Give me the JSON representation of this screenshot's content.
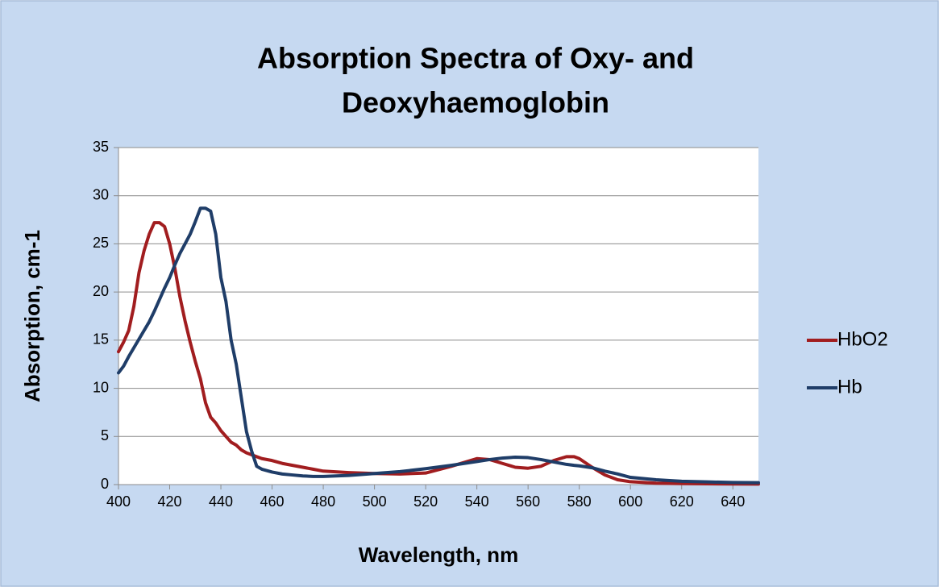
{
  "chart_data": {
    "type": "line",
    "title": [
      "Absorption Spectra of Oxy- and",
      "Deoxyhaemoglobin"
    ],
    "x_label": "Wavelength, nm",
    "y_label": "Absorption, cm-1",
    "x": [
      400,
      402,
      404,
      406,
      408,
      410,
      412,
      414,
      416,
      418,
      420,
      422,
      424,
      426,
      428,
      430,
      432,
      434,
      436,
      438,
      440,
      442,
      444,
      446,
      448,
      450,
      452,
      454,
      456,
      460,
      464,
      468,
      472,
      476,
      480,
      490,
      500,
      510,
      520,
      530,
      540,
      545,
      550,
      555,
      560,
      565,
      570,
      575,
      578,
      580,
      585,
      590,
      595,
      600,
      610,
      620,
      630,
      640,
      650
    ],
    "series": [
      {
        "name": "HbO2",
        "color": "#a11d1f",
        "values": [
          13.8,
          14.8,
          16,
          18.5,
          22,
          24.3,
          26,
          27.2,
          27.2,
          26.8,
          25,
          22.5,
          19.5,
          17,
          14.8,
          12.8,
          11,
          8.5,
          7,
          6.4,
          5.6,
          5,
          4.4,
          4.1,
          3.6,
          3.3,
          3.1,
          2.9,
          2.7,
          2.5,
          2.2,
          2,
          1.8,
          1.6,
          1.4,
          1.25,
          1.15,
          1.1,
          1.2,
          1.9,
          2.7,
          2.6,
          2.2,
          1.8,
          1.7,
          1.9,
          2.5,
          2.9,
          2.9,
          2.7,
          1.8,
          1,
          0.5,
          0.3,
          0.15,
          0.1,
          0.08,
          0.06,
          0.05
        ]
      },
      {
        "name": "Hb",
        "color": "#1f3d68",
        "values": [
          11.6,
          12.3,
          13.3,
          14.2,
          15.1,
          16,
          16.9,
          18,
          19.2,
          20.4,
          21.5,
          22.8,
          24,
          25,
          26,
          27.3,
          28.7,
          28.7,
          28.4,
          26,
          21.5,
          19,
          15,
          12.5,
          9,
          5.5,
          3.5,
          1.9,
          1.6,
          1.3,
          1.1,
          1,
          0.9,
          0.85,
          0.85,
          0.95,
          1.15,
          1.35,
          1.65,
          2,
          2.4,
          2.6,
          2.75,
          2.85,
          2.8,
          2.6,
          2.35,
          2.1,
          2,
          1.95,
          1.75,
          1.4,
          1.1,
          0.75,
          0.5,
          0.35,
          0.28,
          0.22,
          0.2
        ]
      }
    ],
    "xlim": [
      400,
      650
    ],
    "xticks": [
      400,
      420,
      440,
      460,
      480,
      500,
      520,
      540,
      560,
      580,
      600,
      620,
      640
    ],
    "ylim": [
      0,
      35
    ],
    "yticks": [
      0,
      5,
      10,
      15,
      20,
      25,
      30,
      35
    ],
    "grid": true,
    "legend": "right"
  }
}
